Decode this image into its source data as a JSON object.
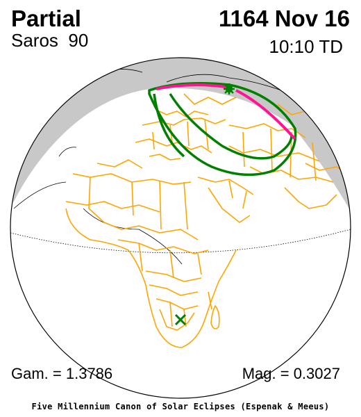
{
  "header": {
    "eclipse_type": "Partial",
    "date": "1164 Nov 16",
    "saros": "Saros  90",
    "time": "10:10 TD"
  },
  "footer": {
    "gamma": "Gam. = 1.3786",
    "magnitude": "Mag. = 0.3027",
    "credit": "Five Millennium Canon of Solar Eclipses (Espenak & Meeus)"
  },
  "map": {
    "projection": "orthographic globe",
    "colors": {
      "night_shade": "#c8c8c8",
      "borders": "#ffa500",
      "penumbra_limit": "#008000",
      "max_eclipse_line": "#ff1493",
      "globe_outline": "#000000"
    },
    "markers": [
      {
        "name": "greatest-eclipse-marker",
        "symbol": "asterisk",
        "color": "#008000"
      },
      {
        "name": "subsolar-point-marker",
        "symbol": "x",
        "color": "#008000"
      }
    ]
  }
}
